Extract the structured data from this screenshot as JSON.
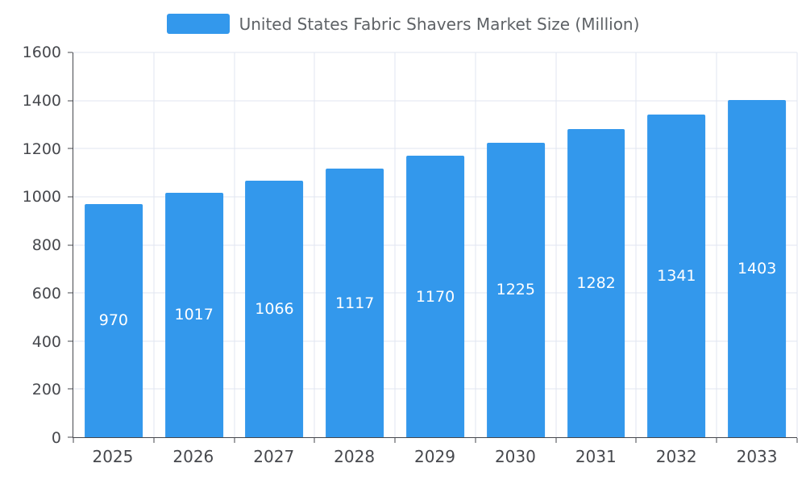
{
  "legend": {
    "title": "United States Fabric Shavers Market Size (Million)"
  },
  "chart_data": {
    "type": "bar",
    "title": "United States Fabric Shavers Market Size (Million)",
    "series_name": "United States Fabric Shavers Market Size (Million)",
    "categories": [
      "2025",
      "2026",
      "2027",
      "2028",
      "2029",
      "2030",
      "2031",
      "2032",
      "2033"
    ],
    "values": [
      970,
      1017,
      1066,
      1117,
      1170,
      1225,
      1282,
      1341,
      1403
    ],
    "xlabel": "",
    "ylabel": "",
    "ylim": [
      0,
      1600
    ],
    "yticks": [
      0,
      200,
      400,
      600,
      800,
      1000,
      1200,
      1400,
      1600
    ],
    "grid": true,
    "legend_position": "top",
    "value_label_position": "inside-middle"
  },
  "colors": {
    "bar": "#3398EC",
    "grid_line": "#E0E6F1",
    "axis_line": "#45474D",
    "tick_label": "#46484D",
    "value_label": "#FFFFFF",
    "legend_text": "#5E6266",
    "background": "#FFFFFF"
  }
}
